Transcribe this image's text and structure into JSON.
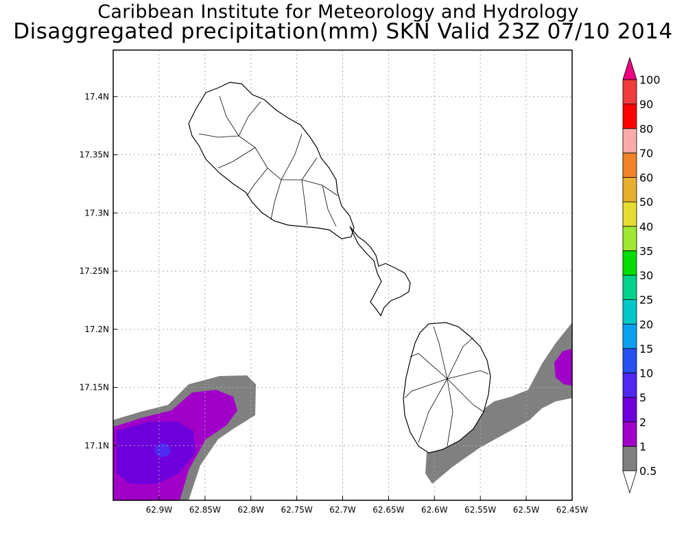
{
  "title": {
    "line1": "Caribbean Institute for Meteorology and Hydrology",
    "line2": "Disaggregated precipitation(mm) SKN Valid 23Z 07/10 2014"
  },
  "map": {
    "type": "precipitation-map",
    "region": "SKN",
    "lon_ticks": [
      "62.9W",
      "62.85W",
      "62.8W",
      "62.75W",
      "62.7W",
      "62.65W",
      "62.6W",
      "62.55W",
      "62.5W",
      "62.45W"
    ],
    "lat_ticks": [
      "17.4N",
      "17.35N",
      "17.3N",
      "17.25N",
      "17.2N",
      "17.15N",
      "17.1N"
    ],
    "lon_range": [
      -62.95,
      -62.45
    ],
    "lat_range": [
      17.053,
      17.44
    ],
    "grid": true
  },
  "colorbar": {
    "levels": [
      {
        "label": "0.5",
        "color": "#ffffff"
      },
      {
        "label": "1",
        "color": "#808080"
      },
      {
        "label": "2",
        "color": "#a000c8"
      },
      {
        "label": "5",
        "color": "#6e00dc"
      },
      {
        "label": "10",
        "color": "#5028f0"
      },
      {
        "label": "15",
        "color": "#2850f0"
      },
      {
        "label": "20",
        "color": "#0aa0f0"
      },
      {
        "label": "25",
        "color": "#00c8c8"
      },
      {
        "label": "30",
        "color": "#00d28c"
      },
      {
        "label": "35",
        "color": "#00dc00"
      },
      {
        "label": "40",
        "color": "#a0e632"
      },
      {
        "label": "50",
        "color": "#e6dc32"
      },
      {
        "label": "60",
        "color": "#e6af2d"
      },
      {
        "label": "70",
        "color": "#f08228"
      },
      {
        "label": "80",
        "color": "#faaaaa"
      },
      {
        "label": "90",
        "color": "#ff0000"
      },
      {
        "label": "100",
        "color": "#f03c3c"
      }
    ],
    "top_arrow_color": "#f00082",
    "bottom_arrow_color": "#ffffff"
  }
}
